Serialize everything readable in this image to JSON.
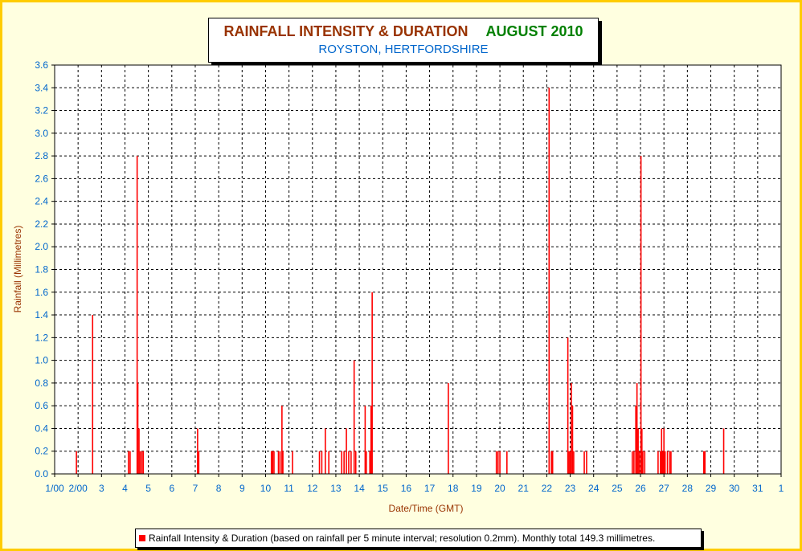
{
  "chart_data": {
    "type": "bar",
    "title": "RAINFALL INTENSITY & DURATION",
    "title_period": "AUGUST 2010",
    "subtitle": "ROYSTON, HERTFORDSHIRE",
    "xlabel": "Date/Time (GMT)",
    "ylabel": "Rainfall (Millimetres)",
    "ylim": [
      0,
      3.6
    ],
    "xlim": [
      1,
      32
    ],
    "y_ticks": [
      "0.0",
      "0.2",
      "0.4",
      "0.6",
      "0.8",
      "1.0",
      "1.2",
      "1.4",
      "1.6",
      "1.8",
      "2.0",
      "2.2",
      "2.4",
      "2.6",
      "2.8",
      "3.0",
      "3.2",
      "3.4",
      "3.6"
    ],
    "x_ticks": [
      "1/00",
      "2/00",
      "3",
      "4",
      "5",
      "6",
      "7",
      "8",
      "9",
      "10",
      "11",
      "12",
      "13",
      "14",
      "15",
      "16",
      "17",
      "18",
      "19",
      "20",
      "21",
      "22",
      "23",
      "24",
      "25",
      "26",
      "27",
      "28",
      "29",
      "30",
      "31",
      "1"
    ],
    "grid": true,
    "legend_position": "bottom",
    "series": [
      {
        "name": "Rainfall Intensity & Duration (based on rainfall per 5 minute interval; resolution 0.2mm). Monthly total 149.3 millimetres.",
        "color": "#FF0000",
        "points": [
          [
            1.93,
            0.2
          ],
          [
            2.62,
            1.4
          ],
          [
            4.15,
            0.2
          ],
          [
            4.22,
            0.2
          ],
          [
            4.52,
            2.8
          ],
          [
            4.55,
            0.8
          ],
          [
            4.6,
            0.4
          ],
          [
            4.65,
            0.2
          ],
          [
            4.72,
            0.2
          ],
          [
            4.78,
            0.2
          ],
          [
            7.1,
            0.4
          ],
          [
            7.15,
            0.2
          ],
          [
            10.25,
            0.2
          ],
          [
            10.3,
            0.2
          ],
          [
            10.36,
            0.2
          ],
          [
            10.55,
            0.2
          ],
          [
            10.62,
            0.2
          ],
          [
            10.7,
            0.6
          ],
          [
            10.74,
            0.2
          ],
          [
            11.15,
            0.2
          ],
          [
            12.3,
            0.2
          ],
          [
            12.4,
            0.2
          ],
          [
            12.55,
            0.4
          ],
          [
            12.7,
            0.2
          ],
          [
            13.25,
            0.2
          ],
          [
            13.35,
            0.2
          ],
          [
            13.45,
            0.4
          ],
          [
            13.55,
            0.2
          ],
          [
            13.65,
            0.2
          ],
          [
            13.78,
            1.0
          ],
          [
            13.85,
            0.2
          ],
          [
            14.25,
            0.6
          ],
          [
            14.3,
            0.2
          ],
          [
            14.45,
            0.2
          ],
          [
            14.5,
            0.6
          ],
          [
            14.55,
            1.6
          ],
          [
            17.8,
            0.8
          ],
          [
            19.85,
            0.2
          ],
          [
            19.92,
            0.2
          ],
          [
            20.0,
            0.2
          ],
          [
            20.3,
            0.2
          ],
          [
            22.1,
            3.4
          ],
          [
            22.2,
            0.2
          ],
          [
            22.25,
            0.2
          ],
          [
            22.9,
            1.2
          ],
          [
            22.95,
            0.2
          ],
          [
            23.0,
            0.2
          ],
          [
            23.05,
            0.8
          ],
          [
            23.1,
            0.6
          ],
          [
            23.15,
            0.2
          ],
          [
            23.6,
            0.2
          ],
          [
            23.7,
            0.2
          ],
          [
            25.65,
            0.2
          ],
          [
            25.72,
            0.2
          ],
          [
            25.8,
            0.6
          ],
          [
            25.85,
            0.8
          ],
          [
            25.9,
            0.4
          ],
          [
            25.95,
            0.2
          ],
          [
            26.02,
            2.8
          ],
          [
            26.06,
            0.4
          ],
          [
            26.1,
            0.2
          ],
          [
            26.18,
            0.2
          ],
          [
            26.75,
            0.2
          ],
          [
            26.85,
            0.2
          ],
          [
            26.9,
            0.4
          ],
          [
            26.95,
            0.2
          ],
          [
            27.0,
            0.4
          ],
          [
            27.05,
            0.2
          ],
          [
            27.15,
            0.2
          ],
          [
            27.25,
            0.2
          ],
          [
            27.3,
            0.2
          ],
          [
            28.7,
            0.2
          ],
          [
            28.75,
            0.2
          ],
          [
            29.55,
            0.4
          ]
        ]
      }
    ]
  }
}
